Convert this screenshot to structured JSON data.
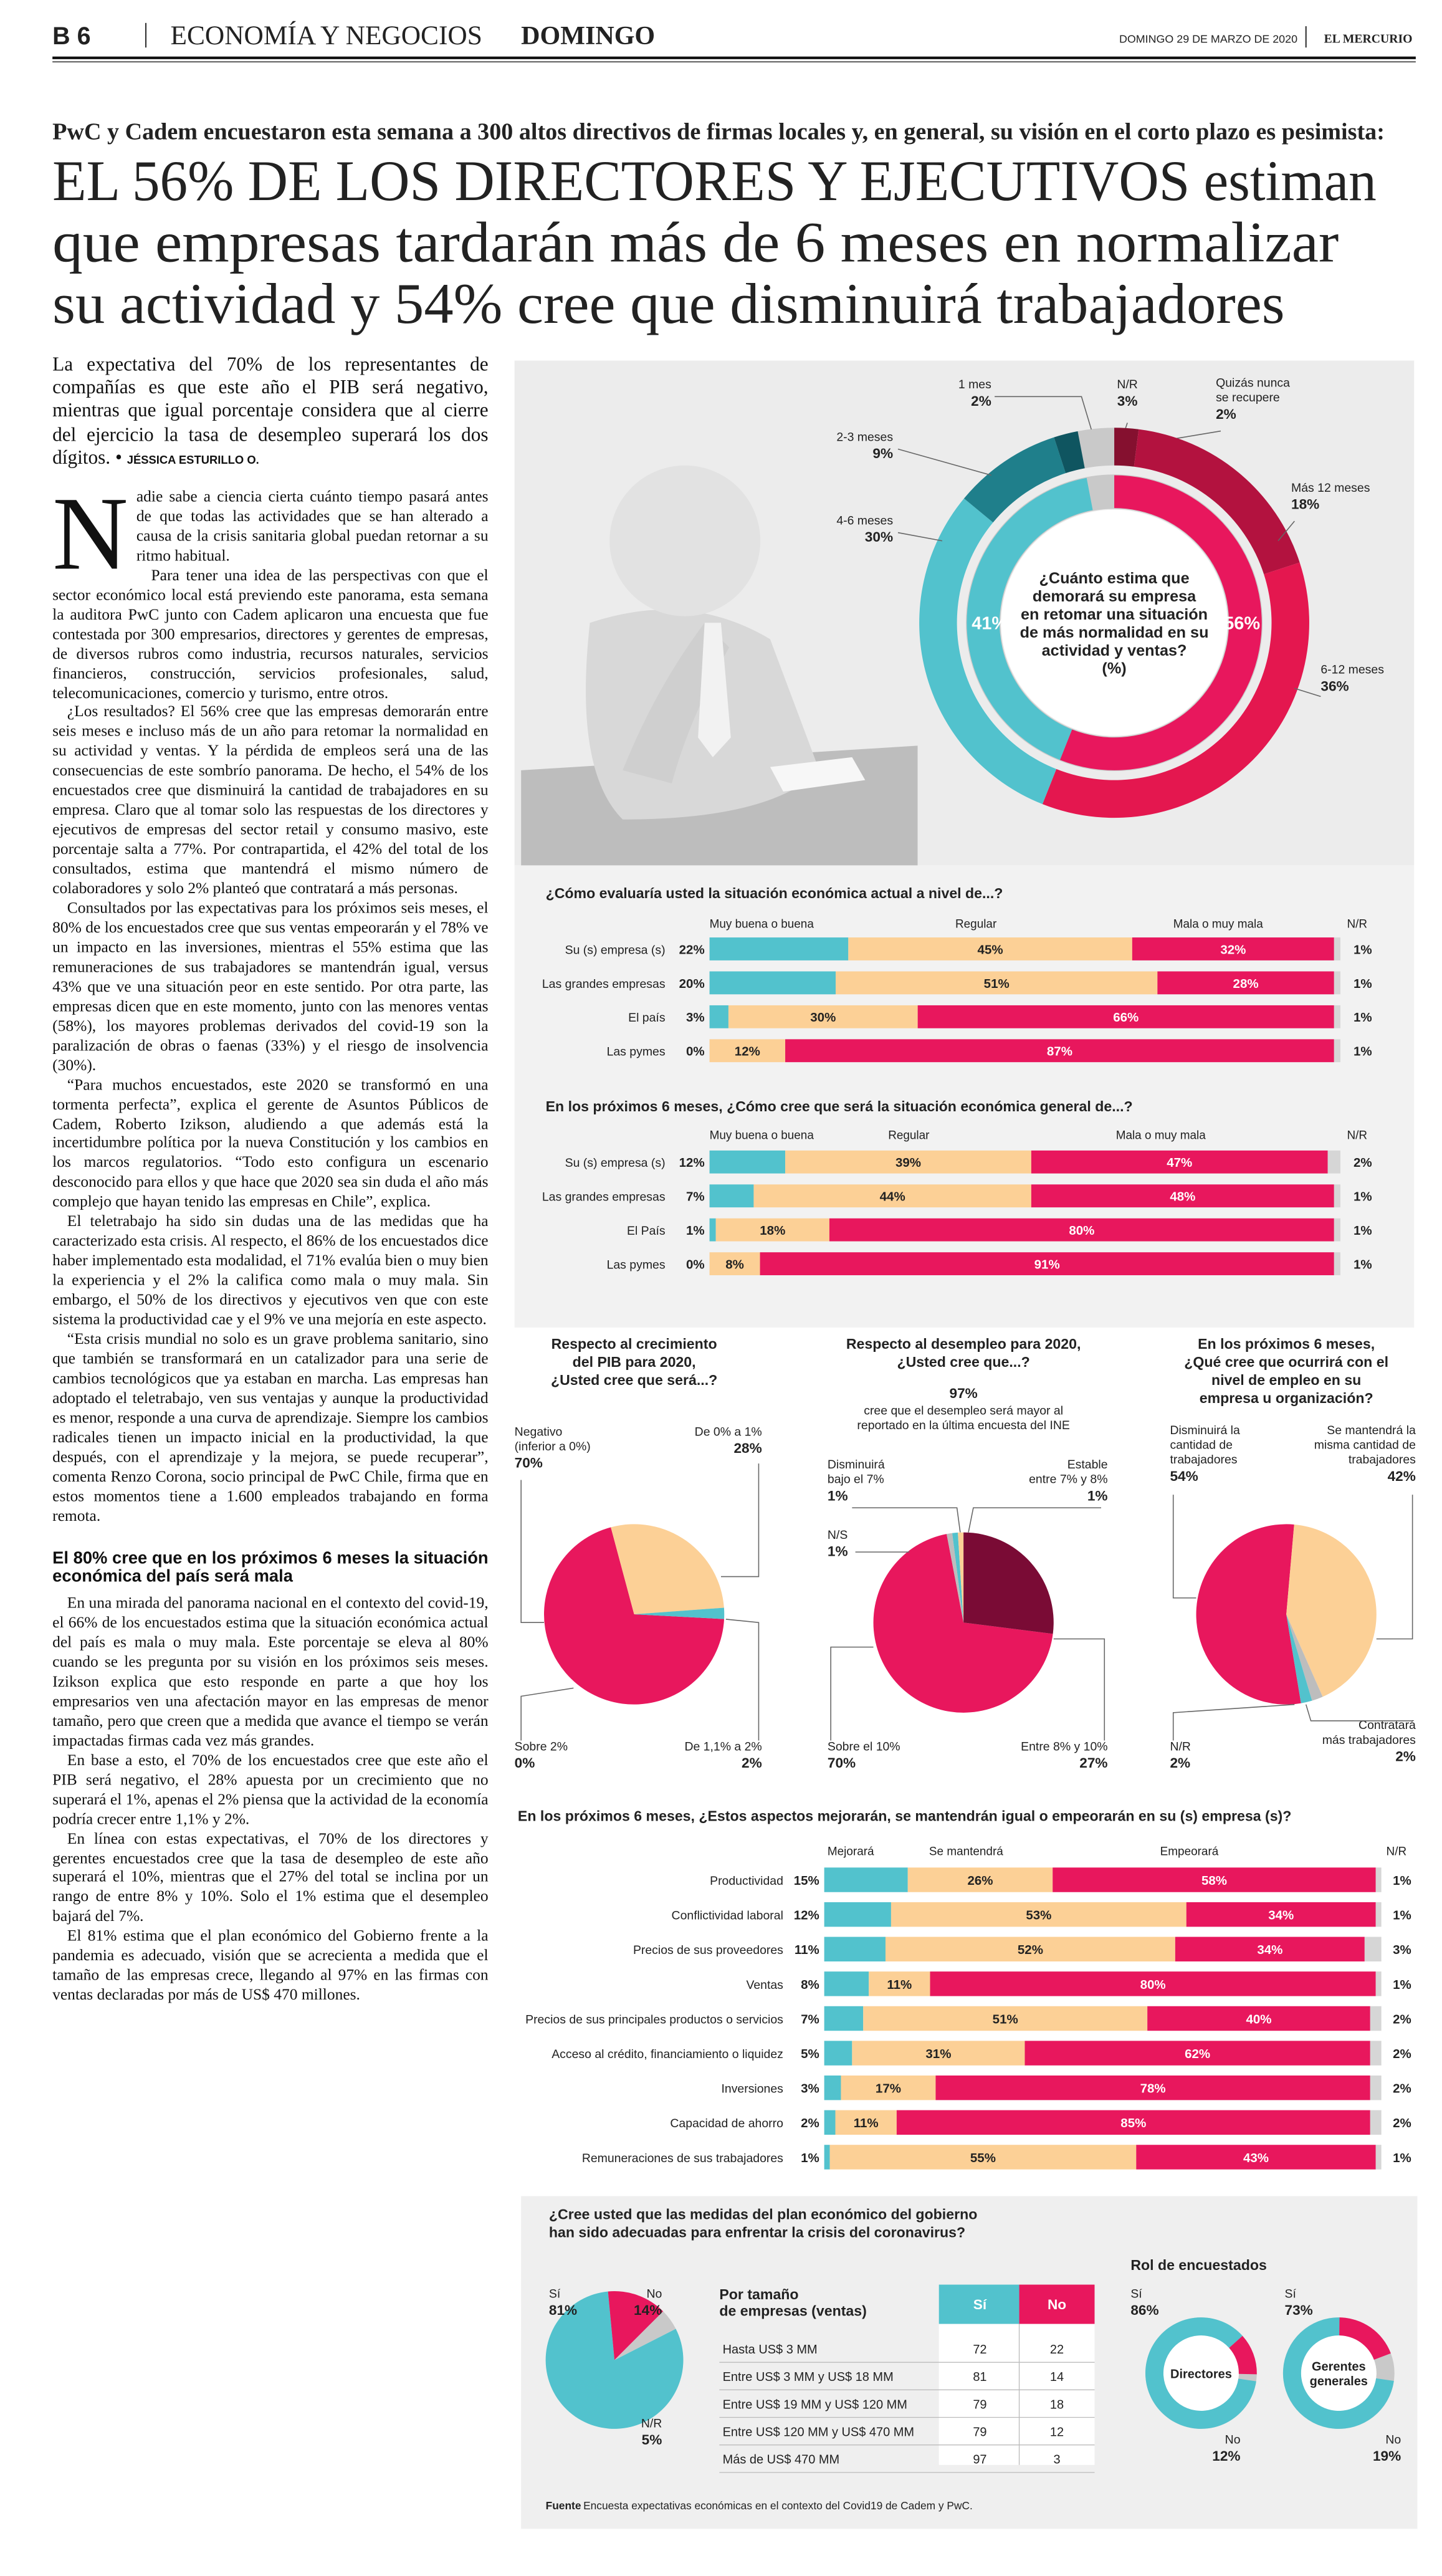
{
  "header": {
    "page": "B 6",
    "section": "ECONOMÍA Y NEGOCIOS",
    "day": "DOMINGO",
    "date": "DOMINGO 29 DE MARZO DE 2020",
    "paper": "EL MERCURIO"
  },
  "article": {
    "kicker": "PwC y Cadem encuestaron esta semana a 300 altos directivos de firmas locales y, en general, su visión en el corto plazo es pesimista:",
    "headline": [
      "EL 56% DE LOS DIRECTORES Y EJECUTIVOS estiman",
      "que empresas tardarán más de 6 meses en normalizar",
      "su actividad y 54% cree que disminuirá trabajadores"
    ],
    "lead": "La expectativa del 70% de los representantes de compañías es que este año el PIB será negativo, mientras que igual porcentaje considera que al cierre del ejercicio la tasa de desempleo superará los dos dígitos.",
    "byline": "JÉSSICA ESTURILLO O.",
    "body": [
      "Nadie sabe a ciencia cierta cuánto tiempo pasará antes de que todas las actividades que se han alterado a causa de la crisis sanitaria global puedan retornar a su ritmo habitual.",
      "Para tener una idea de las perspectivas con que el sector económico local está previendo este panorama, esta semana la auditora PwC junto con Cadem aplicaron una encuesta que fue contestada por 300 empresarios, directores y gerentes de empresas, de diversos rubros como industria, recursos naturales, servicios financieros, construcción, servicios profesionales, salud, telecomunicaciones, comercio y turismo, entre otros.",
      "¿Los resultados? El 56% cree que las empresas demorarán entre seis meses e incluso más de un año para retomar la normalidad en su actividad y ventas. Y la pérdida de empleos será una de las consecuencias de este sombrío panorama. De hecho, el 54% de los encuestados cree que disminuirá la cantidad de trabajadores en su empresa. Claro que al tomar solo las respuestas de los directores y ejecutivos de empresas del sector retail y consumo masivo, este porcentaje salta a 77%. Por contrapartida, el 42% del total de los consultados, estima que mantendrá el mismo número de colaboradores y solo 2% planteó que contratará a más personas.",
      "Consultados por las expectativas para los próximos seis meses, el 80% de los encuestados cree que sus ventas empeorarán y el 78% ve un impacto en las inversiones, mientras el 55% estima que las remuneraciones de sus trabajadores se mantendrán igual, versus 43% que ve una situación peor en este sentido. Por otra parte, las empresas dicen que en este momento, junto con las menores ventas (58%), los mayores problemas derivados del covid-19 son la paralización de obras o faenas (33%) y el riesgo de insolvencia (30%).",
      "“Para muchos encuestados, este 2020 se transformó en una tormenta perfecta”, explica el gerente de Asuntos Públicos de Cadem, Roberto Izikson, aludiendo a que además está la incertidumbre política por la nueva Constitución y los cambios en los marcos regulatorios. “Todo esto configura un escenario desconocido para ellos y que hace que 2020 sea sin duda el año más complejo que hayan tenido las empresas en Chile”, explica.",
      "El teletrabajo ha sido sin dudas una de las medidas que ha caracterizado esta crisis. Al respecto, el 86% de los encuestados dice haber implementado esta modalidad, el 71% evalúa bien o muy bien la experiencia y el 2% la califica como mala o muy mala. Sin embargo, el 50% de los directivos y ejecutivos ven que con este sistema la productividad cae y el 9% ve una mejoría en este aspecto.",
      "“Esta crisis mundial no solo es un grave problema sanitario, sino que también se transformará en un catalizador para una serie de cambios tecnológicos que ya estaban en marcha. Las empresas han adoptado el teletrabajo, ven sus ventajas y aunque la productividad es menor, responde a una curva de aprendizaje. Siempre los cambios radicales tienen un impacto inicial en la productividad, la que después, con el aprendizaje y la mejora, se puede recuperar”, comenta Renzo Corona, socio principal de PwC Chile, firma que en estos momentos tiene a 1.600 empleados trabajando en forma remota."
    ],
    "subhead": "El 80% cree que en los próximos 6 meses la situación económica del país será mala",
    "body2": [
      "En una mirada del panorama nacional en el contexto del covid-19, el 66% de los encuestados estima que la situación económica actual del país es mala o muy mala. Este porcentaje se eleva al 80% cuando se les pregunta por su visión en los próximos seis meses. Izikson explica que esto responde en parte a que hoy los empresarios ven una afectación mayor en las empresas de menor tamaño, pero que creen que a medida que avance el tiempo se verán impactadas firmas cada vez más grandes.",
      "En base a esto, el 70% de los encuestados cree que este año el PIB será negativo, el 28% apuesta por un crecimiento que no superará el 1%, apenas el 2% piensa que la actividad de la economía podría crecer entre 1,1% y 2%.",
      "En línea con estas expectativas, el 70% de los directores y gerentes encuestados cree que la tasa de desempleo de este año superará el 10%, mientras que el 27% del total se inclina por un rango de entre 8% y 10%. Solo el 1% estima que el desempleo bajará del 7%.",
      "El 81% estima que el plan económico del Gobierno frente a la pandemia es adecuado, visión que se acrecienta a medida que el tamaño de las empresas crece, llegando al 97% en las firmas con ventas declaradas por más de US$ 470 millones."
    ]
  },
  "infographic": {
    "normalidad": {
      "type": "donut",
      "question": [
        "¿Cuánto estima que",
        "demorará su empresa",
        "en retomar una situación",
        "de más normalidad en su",
        "actividad y ventas?",
        "(%)"
      ],
      "segments": [
        {
          "name": [
            "N/R"
          ],
          "value": 3,
          "label": "3%",
          "color": "#c9c9c9"
        },
        {
          "name": [
            "Quizás nunca",
            "se recupere"
          ],
          "value": 2,
          "label": "2%",
          "color": "#85102f"
        },
        {
          "name": [
            "Más 12 meses"
          ],
          "value": 18,
          "label": "18%",
          "color": "#b3123f"
        },
        {
          "name": [
            "6-12 meses"
          ],
          "value": 36,
          "label": "36%",
          "color": "#e4174f"
        },
        {
          "name": [
            "4-6 meses"
          ],
          "value": 30,
          "label": "30%",
          "color": "#52c2cd"
        },
        {
          "name": [
            "2-3 meses"
          ],
          "value": 9,
          "label": "9%",
          "color": "#1f7f8b"
        },
        {
          "name": [
            "1 mes"
          ],
          "value": 2,
          "label": "2%",
          "color": "#0f5560"
        }
      ],
      "inner": [
        {
          "value": 56,
          "label": "56%",
          "color": "#e8175d"
        },
        {
          "value": 41,
          "label": "41%",
          "color": "#52c2cd"
        }
      ]
    },
    "actual": {
      "type": "stacked_bar",
      "title": "¿Cómo evaluaría usted la situación económica actual a nivel de...?",
      "categories": [
        "Su (s) empresa (s)",
        "Las grandes empresas",
        "El país",
        "Las pymes"
      ],
      "series": [
        {
          "name": "Muy buena o buena",
          "color": "#52c2cd",
          "values": [
            22,
            20,
            3,
            0
          ],
          "value_labels": [
            "22%",
            "20%",
            "3%",
            "0%"
          ]
        },
        {
          "name": "Regular",
          "color": "#fcd096",
          "values": [
            45,
            51,
            30,
            12
          ],
          "value_labels": [
            "45%",
            "51%",
            "30%",
            "12%"
          ]
        },
        {
          "name": "Mala o muy mala",
          "color": "#e8175d",
          "values": [
            32,
            28,
            66,
            87
          ],
          "value_labels": [
            "32%",
            "28%",
            "66%",
            "87%"
          ]
        },
        {
          "name": "N/R",
          "color": "#d6d6d6",
          "values": [
            1,
            1,
            1,
            1
          ],
          "value_labels": [
            "1%",
            "1%",
            "1%",
            "1%"
          ]
        }
      ]
    },
    "futuro": {
      "type": "stacked_bar",
      "title": "En los próximos 6 meses, ¿Cómo cree que será la situación económica general de...?",
      "categories": [
        "Su (s) empresa (s)",
        "Las grandes empresas",
        "El País",
        "Las pymes"
      ],
      "series": [
        {
          "name": "Muy buena o buena",
          "color": "#52c2cd",
          "values": [
            12,
            7,
            1,
            0
          ],
          "value_labels": [
            "12%",
            "7%",
            "1%",
            "0%"
          ]
        },
        {
          "name": "Regular",
          "color": "#fcd096",
          "values": [
            39,
            44,
            18,
            8
          ],
          "value_labels": [
            "39%",
            "44%",
            "18%",
            "8%"
          ]
        },
        {
          "name": "Mala o muy mala",
          "color": "#e8175d",
          "values": [
            47,
            48,
            80,
            91
          ],
          "value_labels": [
            "47%",
            "48%",
            "80%",
            "91%"
          ]
        },
        {
          "name": "N/R",
          "color": "#d6d6d6",
          "values": [
            2,
            1,
            1,
            1
          ],
          "value_labels": [
            "2%",
            "1%",
            "1%",
            "1%"
          ]
        }
      ]
    },
    "pib": {
      "type": "pie",
      "title": [
        "Respecto al crecimiento",
        "del PIB para 2020,",
        "¿Usted cree que será...?"
      ],
      "slices": [
        {
          "name": [
            "Negativo",
            "(inferior a 0%)"
          ],
          "value": 70,
          "label": "70%",
          "color": "#e8175d"
        },
        {
          "name": [
            "De 0% a 1%"
          ],
          "value": 28,
          "label": "28%",
          "color": "#fcd096"
        },
        {
          "name": [
            "De 1,1% a 2%"
          ],
          "value": 2,
          "label": "2%",
          "color": "#52c2cd"
        },
        {
          "name": [
            "Sobre 2%"
          ],
          "value": 0,
          "label": "0%",
          "color": "#c9c9c9"
        }
      ]
    },
    "desempleo": {
      "type": "pie",
      "title": [
        "Respecto al desempleo para 2020,",
        "¿Usted cree que...?"
      ],
      "highlight": "97%",
      "highlight_text": [
        "cree que el desempleo será mayor al",
        "reportado en la última encuesta del INE"
      ],
      "slices": [
        {
          "name": [
            "Sobre el 10%"
          ],
          "value": 70,
          "label": "70%",
          "color": "#e8175d"
        },
        {
          "name": [
            "N/S"
          ],
          "value": 1,
          "label": "1%",
          "color": "#bdbdbd"
        },
        {
          "name": [
            "Disminuirá",
            "bajo el 7%"
          ],
          "value": 1,
          "label": "1%",
          "color": "#52c2cd"
        },
        {
          "name": [
            "Estable",
            "entre 7% y 8%"
          ],
          "value": 1,
          "label": "1%",
          "color": "#fcd096"
        },
        {
          "name": [
            "Entre 8% y 10%"
          ],
          "value": 27,
          "label": "27%",
          "color": "#7a0b35"
        }
      ]
    },
    "empleo": {
      "type": "pie",
      "title": [
        "En los próximos 6 meses,",
        "¿Qué cree que ocurrirá con el",
        "nivel de empleo en su",
        "empresa u organización?"
      ],
      "slices": [
        {
          "name": [
            "Disminuirá la",
            "cantidad de",
            "trabajadores"
          ],
          "value": 54,
          "label": "54%",
          "color": "#e8175d"
        },
        {
          "name": [
            "Se mantendrá la",
            "misma cantidad de",
            "trabajadores"
          ],
          "value": 42,
          "label": "42%",
          "color": "#fcd096"
        },
        {
          "name": [
            "Contratará",
            "más trabajadores"
          ],
          "value": 2,
          "label": "2%",
          "color": "#bdbdbd"
        },
        {
          "name": [
            "N/R"
          ],
          "value": 2,
          "label": "2%",
          "color": "#52c2cd"
        }
      ]
    },
    "aspectos": {
      "type": "stacked_bar",
      "title": "En los próximos 6 meses, ¿Estos aspectos mejorarán, se mantendrán igual o empeorarán en su (s) empresa (s)?",
      "categories": [
        "Productividad",
        "Conflictividad laboral",
        "Precios de sus proveedores",
        "Ventas",
        "Precios de sus principales productos o servicios",
        "Acceso al crédito, financiamiento o liquidez",
        "Inversiones",
        "Capacidad de ahorro",
        "Remuneraciones de sus trabajadores"
      ],
      "series": [
        {
          "name": "Mejorará",
          "color": "#52c2cd",
          "values": [
            15,
            12,
            11,
            8,
            7,
            5,
            3,
            2,
            1
          ],
          "value_labels": [
            "15%",
            "12%",
            "11%",
            "8%",
            "7%",
            "5%",
            "3%",
            "2%",
            "1%"
          ]
        },
        {
          "name": "Se mantendrá",
          "color": "#fcd096",
          "values": [
            26,
            53,
            52,
            11,
            51,
            31,
            17,
            11,
            55
          ],
          "value_labels": [
            "26%",
            "53%",
            "52%",
            "11%",
            "51%",
            "31%",
            "17%",
            "11%",
            "55%"
          ]
        },
        {
          "name": "Empeorará",
          "color": "#e8175d",
          "values": [
            58,
            34,
            34,
            80,
            40,
            62,
            78,
            85,
            43
          ],
          "value_labels": [
            "58%",
            "34%",
            "34%",
            "80%",
            "40%",
            "62%",
            "78%",
            "85%",
            "43%"
          ]
        },
        {
          "name": "N/R",
          "color": "#d6d6d6",
          "values": [
            1,
            1,
            3,
            1,
            2,
            2,
            2,
            2,
            1
          ],
          "value_labels": [
            "1%",
            "1%",
            "3%",
            "1%",
            "2%",
            "2%",
            "2%",
            "2%",
            "1%"
          ]
        }
      ]
    },
    "gobierno": {
      "type": "pie",
      "title": [
        "¿Cree usted que las medidas del plan económico del gobierno",
        "han sido adecuadas para enfrentar la crisis del coronavirus?"
      ],
      "slices": [
        {
          "name": [
            "Sí"
          ],
          "value": 81,
          "label": "81%",
          "color": "#52c2cd"
        },
        {
          "name": [
            "No"
          ],
          "value": 14,
          "label": "14%",
          "color": "#e8175d"
        },
        {
          "name": [
            "N/R"
          ],
          "value": 5,
          "label": "5%",
          "color": "#c9c9c9"
        }
      ]
    },
    "tamano": {
      "type": "table",
      "title": [
        "Por tamaño",
        "de empresas (ventas)"
      ],
      "columns": [
        "Sí",
        "No"
      ],
      "rows": [
        {
          "label": "Hasta US$ 3 MM",
          "cells": [
            "72",
            "22"
          ]
        },
        {
          "label": "Entre US$ 3 MM y US$ 18 MM",
          "cells": [
            "81",
            "14"
          ]
        },
        {
          "label": "Entre US$ 19 MM y US$ 120 MM",
          "cells": [
            "79",
            "18"
          ]
        },
        {
          "label": "Entre US$ 120 MM y US$ 470 MM",
          "cells": [
            "79",
            "12"
          ]
        },
        {
          "label": "Más de US$ 470 MM",
          "cells": [
            "97",
            "3"
          ]
        }
      ]
    },
    "rol": {
      "type": "donut",
      "title": "Rol de encuestados",
      "donuts": [
        {
          "name": [
            "Directores"
          ],
          "slices": [
            {
              "name": [
                "Sí"
              ],
              "value": 86,
              "label": "86%",
              "color": "#52c2cd"
            },
            {
              "name": [
                "No"
              ],
              "value": 12,
              "label": "12%",
              "color": "#e8175d"
            }
          ]
        },
        {
          "name": [
            "Gerentes",
            "generales"
          ],
          "slices": [
            {
              "name": [
                "Sí"
              ],
              "value": 73,
              "label": "73%",
              "color": "#52c2cd"
            },
            {
              "name": [
                "No"
              ],
              "value": 19,
              "label": "19%",
              "color": "#e8175d"
            }
          ]
        }
      ]
    },
    "source_label": "Fuente",
    "source": "Encuesta expectativas económicas en el contexto del Covid19 de Cadem y PwC."
  }
}
